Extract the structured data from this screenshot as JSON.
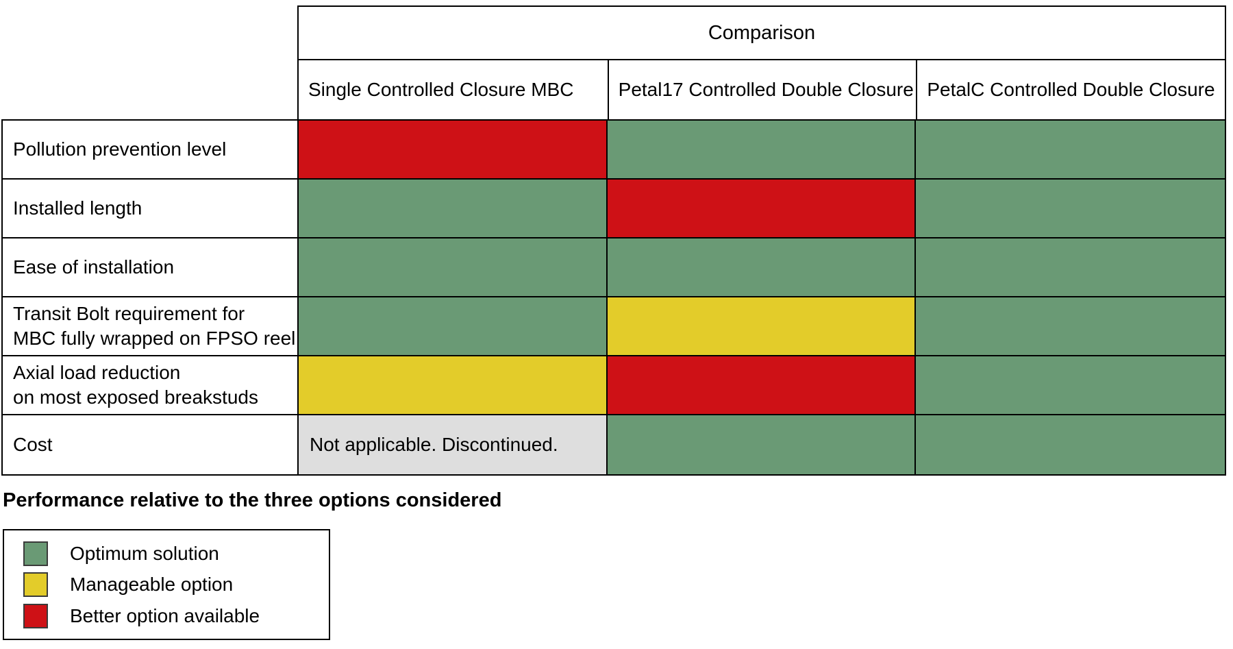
{
  "colors": {
    "green": "#6A9A75",
    "yellow": "#E3CC2A",
    "red": "#CE1116",
    "gray": "#DEDEDE"
  },
  "chart_data": {
    "type": "table",
    "title": "Comparison",
    "columns": [
      "Single Controlled Closure MBC",
      "Petal17 Controlled Double Closure",
      "PetalC Controlled Double Closure"
    ],
    "rows": [
      {
        "label": "Pollution prevention level",
        "cells": [
          {
            "color": "red",
            "value": "Better option available",
            "text": ""
          },
          {
            "color": "green",
            "value": "Optimum solution",
            "text": ""
          },
          {
            "color": "green",
            "value": "Optimum solution",
            "text": ""
          }
        ]
      },
      {
        "label": "Installed length",
        "cells": [
          {
            "color": "green",
            "value": "Optimum solution",
            "text": ""
          },
          {
            "color": "red",
            "value": "Better option available",
            "text": ""
          },
          {
            "color": "green",
            "value": "Optimum solution",
            "text": ""
          }
        ]
      },
      {
        "label": "Ease of installation",
        "cells": [
          {
            "color": "green",
            "value": "Optimum solution",
            "text": ""
          },
          {
            "color": "green",
            "value": "Optimum solution",
            "text": ""
          },
          {
            "color": "green",
            "value": "Optimum solution",
            "text": ""
          }
        ]
      },
      {
        "label": "Transit Bolt requirement for\nMBC fully wrapped on FPSO reel",
        "cells": [
          {
            "color": "green",
            "value": "Optimum solution",
            "text": ""
          },
          {
            "color": "yellow",
            "value": "Manageable option",
            "text": ""
          },
          {
            "color": "green",
            "value": "Optimum solution",
            "text": ""
          }
        ]
      },
      {
        "label": "Axial load reduction\non most exposed breakstuds",
        "cells": [
          {
            "color": "yellow",
            "value": "Manageable option",
            "text": ""
          },
          {
            "color": "red",
            "value": "Better option available",
            "text": ""
          },
          {
            "color": "green",
            "value": "Optimum solution",
            "text": ""
          }
        ]
      },
      {
        "label": "Cost",
        "cells": [
          {
            "color": "gray",
            "value": "Not applicable",
            "text": "Not applicable. Discontinued."
          },
          {
            "color": "green",
            "value": "Optimum solution",
            "text": ""
          },
          {
            "color": "green",
            "value": "Optimum solution",
            "text": ""
          }
        ]
      }
    ],
    "caption": "Performance relative to the three options considered",
    "legend": [
      {
        "color": "green",
        "label": "Optimum solution"
      },
      {
        "color": "yellow",
        "label": "Manageable option"
      },
      {
        "color": "red",
        "label": "Better option available"
      }
    ]
  }
}
